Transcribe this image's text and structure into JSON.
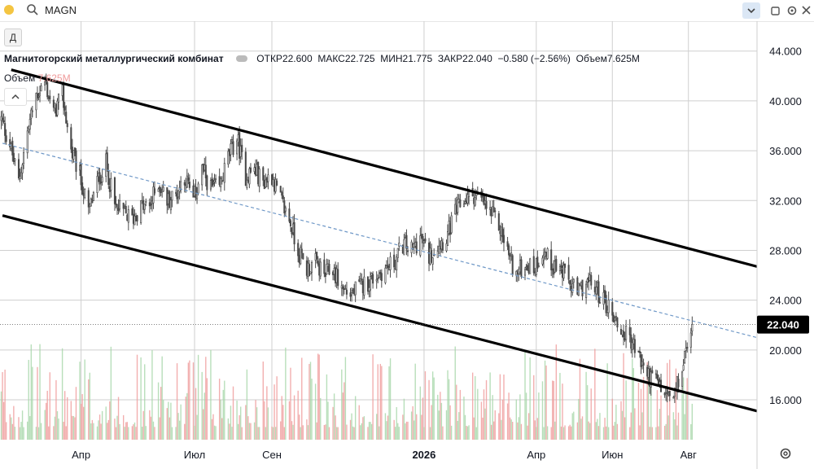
{
  "toolbar": {
    "symbol": "MAGN",
    "period_button": "Д"
  },
  "legend": {
    "name": "Магнитогорский металлургический комбинат",
    "open_label": "ОТКР",
    "open": "22.600",
    "high_label": "МАКС",
    "high": "22.725",
    "low_label": "МИН",
    "low": "21.775",
    "close_label": "ЗАКР",
    "close": "22.040",
    "change": "−0.580 (−2.56%)",
    "volume_label": "Объем",
    "volume": "7.625M"
  },
  "volume_legend": {
    "label": "Объем",
    "value": "7.625M"
  },
  "colors": {
    "candle": "#4a4a4a",
    "vol_up": "#a5d6a7",
    "vol_down": "#ef9a9a",
    "channel": "#000000",
    "midline": "#6f98c7",
    "grid": "#cfcfcf",
    "price_tag_bg": "#000000",
    "price_tag_text": "#ffffff",
    "accent": "#2962ff"
  },
  "chart_data": {
    "type": "candlestick",
    "ylim": [
      12.8,
      46.4
    ],
    "y_ticks": [
      "16.000",
      "20.000",
      "24.000",
      "28.000",
      "32.000",
      "36.000",
      "40.000",
      "44.000"
    ],
    "y_tick_values": [
      16,
      20,
      24,
      28,
      32,
      36,
      40,
      44
    ],
    "x_range": [
      "2025-01-26",
      "2026-09-25"
    ],
    "x_labels": [
      "Апр",
      "Июл",
      "Сен",
      "2026",
      "Апр",
      "Июн",
      "Авг"
    ],
    "x_label_dates": [
      "2025-04-01",
      "2025-07-01",
      "2025-09-01",
      "2026-01-01",
      "2026-04-01",
      "2026-06-01",
      "2026-08-01"
    ],
    "last_price": "22.040",
    "last_price_value": 22.04,
    "last_date": "2026-08-04",
    "close_path": [
      [
        "2025-01-27",
        38.5
      ],
      [
        "2025-02-03",
        36.5
      ],
      [
        "2025-02-10",
        33.5
      ],
      [
        "2025-02-17",
        37.5
      ],
      [
        "2025-02-24",
        40.5
      ],
      [
        "2025-03-03",
        41.5
      ],
      [
        "2025-03-10",
        39.0
      ],
      [
        "2025-03-17",
        40.5
      ],
      [
        "2025-03-24",
        36.0
      ],
      [
        "2025-03-31",
        34.0
      ],
      [
        "2025-04-07",
        31.0
      ],
      [
        "2025-04-14",
        33.5
      ],
      [
        "2025-04-21",
        35.0
      ],
      [
        "2025-04-28",
        31.5
      ],
      [
        "2025-05-05",
        31.0
      ],
      [
        "2025-05-12",
        30.5
      ],
      [
        "2025-05-19",
        31.5
      ],
      [
        "2025-05-26",
        31.5
      ],
      [
        "2025-06-02",
        33.5
      ],
      [
        "2025-06-09",
        32.0
      ],
      [
        "2025-06-16",
        32.5
      ],
      [
        "2025-06-23",
        34.0
      ],
      [
        "2025-06-30",
        32.0
      ],
      [
        "2025-07-07",
        34.5
      ],
      [
        "2025-07-14",
        33.0
      ],
      [
        "2025-07-21",
        33.0
      ],
      [
        "2025-07-28",
        35.5
      ],
      [
        "2025-08-04",
        37.0
      ],
      [
        "2025-08-11",
        34.0
      ],
      [
        "2025-08-18",
        34.5
      ],
      [
        "2025-08-25",
        33.5
      ],
      [
        "2025-09-01",
        34.0
      ],
      [
        "2025-09-08",
        32.0
      ],
      [
        "2025-09-15",
        30.5
      ],
      [
        "2025-09-22",
        28.0
      ],
      [
        "2025-09-29",
        26.5
      ],
      [
        "2025-10-06",
        27.0
      ],
      [
        "2025-10-13",
        26.0
      ],
      [
        "2025-10-20",
        26.5
      ],
      [
        "2025-10-27",
        25.0
      ],
      [
        "2025-11-03",
        24.5
      ],
      [
        "2025-11-10",
        25.0
      ],
      [
        "2025-11-17",
        25.5
      ],
      [
        "2025-11-24",
        26.0
      ],
      [
        "2025-12-01",
        26.5
      ],
      [
        "2025-12-08",
        27.0
      ],
      [
        "2025-12-15",
        28.5
      ],
      [
        "2025-12-22",
        28.0
      ],
      [
        "2025-12-29",
        29.0
      ],
      [
        "2026-01-05",
        27.5
      ],
      [
        "2026-01-12",
        28.5
      ],
      [
        "2026-01-19",
        29.0
      ],
      [
        "2026-01-26",
        31.0
      ],
      [
        "2026-02-02",
        32.0
      ],
      [
        "2026-02-09",
        32.5
      ],
      [
        "2026-02-16",
        32.0
      ],
      [
        "2026-02-23",
        31.0
      ],
      [
        "2026-03-02",
        30.0
      ],
      [
        "2026-03-09",
        28.0
      ],
      [
        "2026-03-16",
        26.0
      ],
      [
        "2026-03-23",
        27.0
      ],
      [
        "2026-03-30",
        26.5
      ],
      [
        "2026-04-06",
        28.0
      ],
      [
        "2026-04-13",
        27.0
      ],
      [
        "2026-04-20",
        26.5
      ],
      [
        "2026-04-27",
        25.5
      ],
      [
        "2026-05-04",
        24.5
      ],
      [
        "2026-05-11",
        25.5
      ],
      [
        "2026-05-18",
        25.0
      ],
      [
        "2026-05-25",
        24.0
      ],
      [
        "2026-06-01",
        23.0
      ],
      [
        "2026-06-08",
        21.5
      ],
      [
        "2026-06-15",
        21.0
      ],
      [
        "2026-06-22",
        19.5
      ],
      [
        "2026-06-29",
        18.0
      ],
      [
        "2026-07-06",
        17.5
      ],
      [
        "2026-07-13",
        16.5
      ],
      [
        "2026-07-20",
        16.0
      ],
      [
        "2026-07-27",
        18.5
      ],
      [
        "2026-08-04",
        22.04
      ]
    ],
    "channel_upper": [
      [
        "2025-02-04",
        42.5
      ],
      [
        "2026-09-25",
        26.7
      ]
    ],
    "channel_lower": [
      [
        "2025-01-28",
        30.8
      ],
      [
        "2026-09-25",
        15.1
      ]
    ],
    "channel_mid": [
      [
        "2025-01-28",
        36.6
      ],
      [
        "2026-09-25",
        21.0
      ]
    ]
  }
}
